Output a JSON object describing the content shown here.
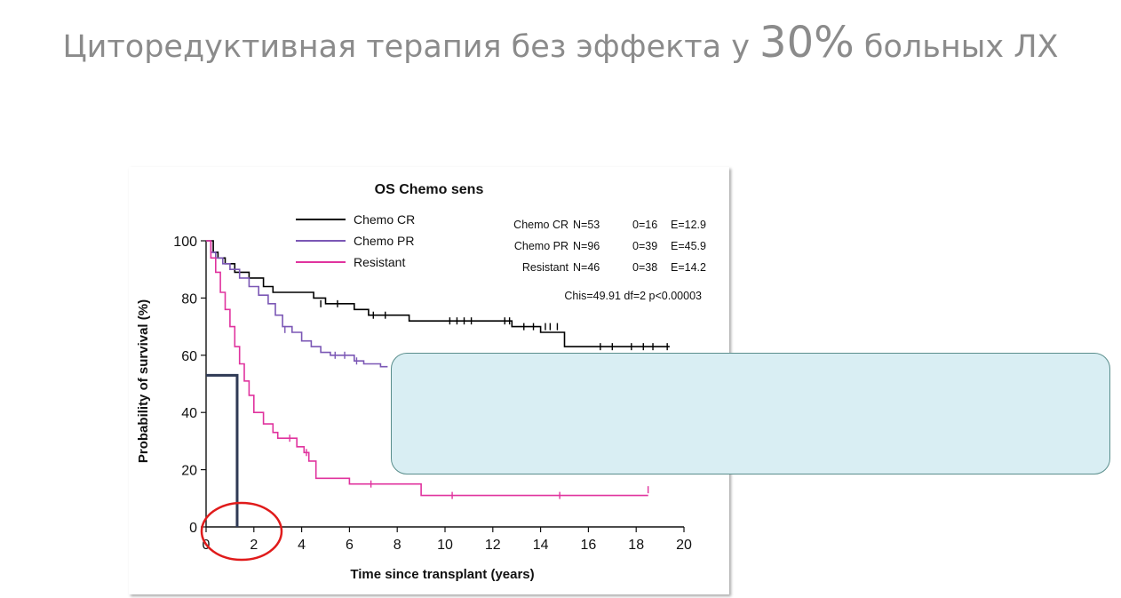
{
  "slide": {
    "title_text": "Циторедуктивная терапия без эффекта у ",
    "title_highlight": "30%",
    "title_end": " больных ЛХ"
  },
  "chart_data": {
    "type": "line",
    "title": "OS Chemo sens",
    "xlabel": "Time since transplant (years)",
    "ylabel": "Probability of survival (%)",
    "xlim": [
      0,
      20
    ],
    "ylim": [
      0,
      100
    ],
    "x_ticks": [
      "0",
      "2",
      "4",
      "6",
      "8",
      "10",
      "12",
      "14",
      "16",
      "18",
      "20"
    ],
    "y_ticks": [
      "0",
      "20",
      "40",
      "60",
      "80",
      "100"
    ],
    "legend_placement": "top-left",
    "series": [
      {
        "name": "Chemo CR",
        "color": "#000000",
        "steps": [
          [
            0,
            100
          ],
          [
            0.3,
            96
          ],
          [
            0.5,
            94
          ],
          [
            0.8,
            92
          ],
          [
            1.2,
            89
          ],
          [
            1.8,
            87
          ],
          [
            2.4,
            84
          ],
          [
            2.8,
            82
          ],
          [
            4.5,
            80
          ],
          [
            5.0,
            78
          ],
          [
            6.2,
            76
          ],
          [
            6.8,
            74
          ],
          [
            8.5,
            72
          ],
          [
            10.5,
            72
          ],
          [
            12.8,
            70
          ],
          [
            14.0,
            68
          ],
          [
            15.0,
            63
          ],
          [
            19.4,
            63
          ]
        ],
        "censors": [
          [
            4.8,
            78
          ],
          [
            5.5,
            78
          ],
          [
            7.0,
            74
          ],
          [
            7.5,
            74
          ],
          [
            10.2,
            72
          ],
          [
            10.5,
            72
          ],
          [
            10.8,
            72
          ],
          [
            11.1,
            72
          ],
          [
            12.5,
            72
          ],
          [
            12.7,
            72
          ],
          [
            13.3,
            70
          ],
          [
            13.7,
            70
          ],
          [
            14.2,
            70
          ],
          [
            14.4,
            70
          ],
          [
            14.7,
            70
          ],
          [
            16.5,
            63
          ],
          [
            17.0,
            63
          ],
          [
            17.8,
            63
          ],
          [
            18.3,
            63
          ],
          [
            18.7,
            63
          ],
          [
            19.3,
            63
          ]
        ],
        "stats": {
          "label": "Chemo CR",
          "n": "N=53",
          "o": "0=16",
          "e": "E=12.9"
        }
      },
      {
        "name": "Chemo PR",
        "color": "#7b57b5",
        "steps": [
          [
            0,
            100
          ],
          [
            0.2,
            96
          ],
          [
            0.4,
            94
          ],
          [
            0.7,
            92
          ],
          [
            1.0,
            90
          ],
          [
            1.4,
            87
          ],
          [
            1.8,
            84
          ],
          [
            2.2,
            81
          ],
          [
            2.6,
            78
          ],
          [
            2.9,
            74
          ],
          [
            3.2,
            70
          ],
          [
            3.6,
            68
          ],
          [
            4.0,
            65
          ],
          [
            4.4,
            63
          ],
          [
            4.8,
            61
          ],
          [
            5.2,
            60
          ],
          [
            6.2,
            58
          ],
          [
            6.6,
            57
          ],
          [
            7.3,
            56
          ],
          [
            7.6,
            56
          ]
        ],
        "censors": [
          [
            3.3,
            69
          ],
          [
            5.4,
            60
          ],
          [
            5.8,
            60
          ],
          [
            6.3,
            58
          ]
        ],
        "stats": {
          "label": "Chemo PR",
          "n": "N=96",
          "o": "0=39",
          "e": "E=45.9"
        }
      },
      {
        "name": "Resistant",
        "color": "#e0339e",
        "steps": [
          [
            0,
            100
          ],
          [
            0.2,
            94
          ],
          [
            0.4,
            89
          ],
          [
            0.6,
            82
          ],
          [
            0.8,
            76
          ],
          [
            1.0,
            70
          ],
          [
            1.2,
            63
          ],
          [
            1.4,
            57
          ],
          [
            1.6,
            51
          ],
          [
            1.8,
            46
          ],
          [
            2.0,
            40
          ],
          [
            2.4,
            36
          ],
          [
            2.8,
            33
          ],
          [
            3.0,
            31
          ],
          [
            3.8,
            28
          ],
          [
            4.1,
            26
          ],
          [
            4.3,
            23
          ],
          [
            4.6,
            17
          ],
          [
            6.0,
            15
          ],
          [
            9.0,
            11
          ],
          [
            18.5,
            11
          ]
        ],
        "censors": [
          [
            3.5,
            31
          ],
          [
            4.2,
            26
          ],
          [
            6.9,
            15
          ],
          [
            10.3,
            11
          ],
          [
            14.8,
            11
          ],
          [
            18.5,
            13
          ]
        ],
        "stats": {
          "label": "Resistant",
          "n": "N=46",
          "o": "0=38",
          "e": "E=14.2"
        }
      }
    ],
    "test_stat": "Chis=49.91  df=2  p<0.00003",
    "median_line": {
      "x": 1.3,
      "y": 53,
      "color": "#2f3a55"
    },
    "highlight_circle_color": "#e01b1b"
  }
}
